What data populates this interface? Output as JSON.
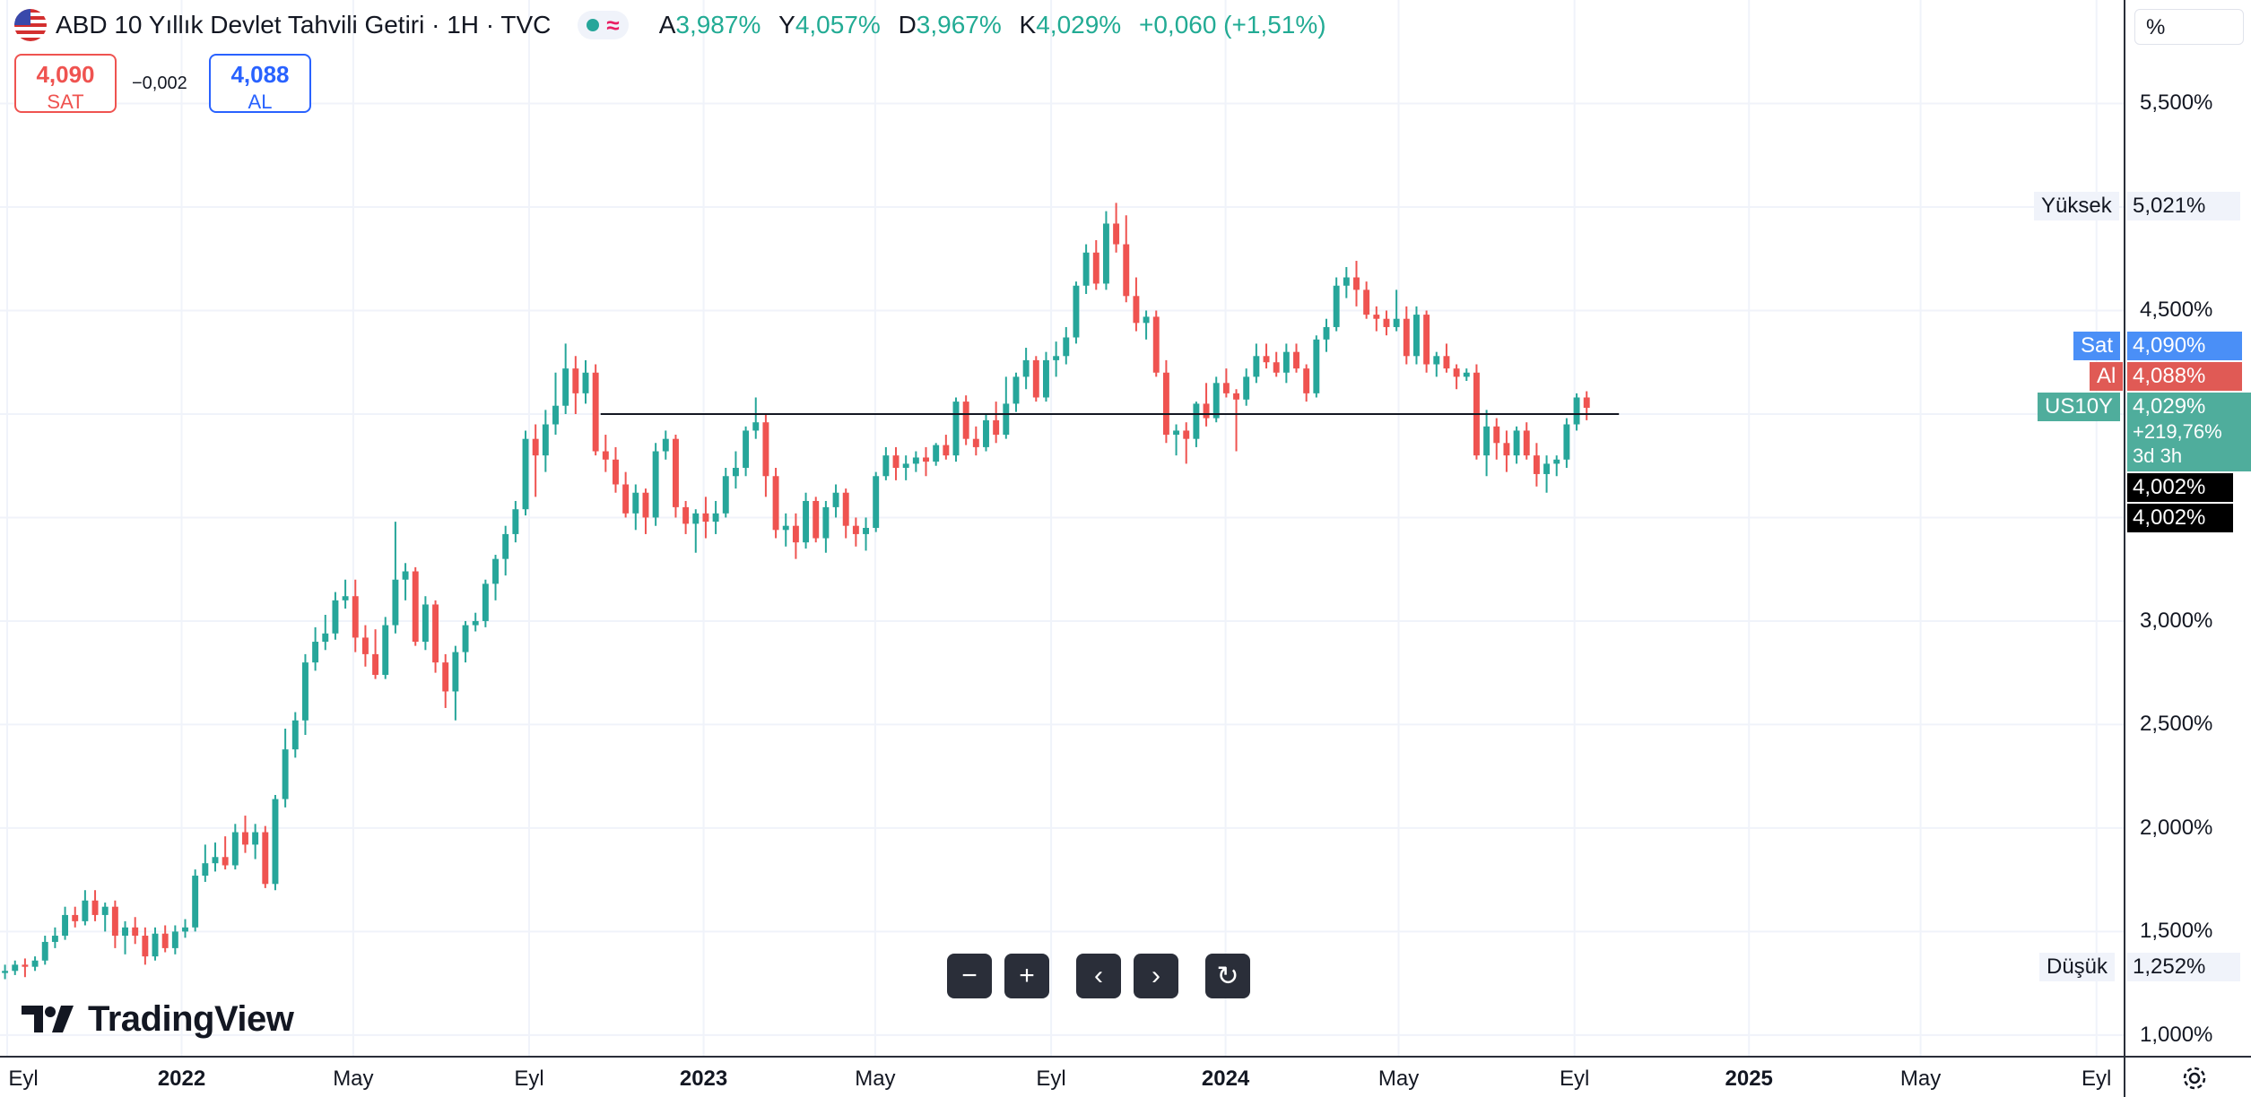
{
  "header": {
    "title": "ABD 10 Yıllık Devlet Tahvili Getiri · 1H · TVC",
    "ohlc": [
      {
        "key": "A",
        "value": "3,987%"
      },
      {
        "key": "Y",
        "value": "4,057%"
      },
      {
        "key": "D",
        "value": "3,967%"
      },
      {
        "key": "K",
        "value": "4,029%"
      }
    ],
    "change": "+0,060 (+1,51%)"
  },
  "trade": {
    "sell_price": "4,090",
    "sell_label": "SAT",
    "spread": "−0,002",
    "buy_price": "4,088",
    "buy_label": "AL"
  },
  "y_axis": {
    "unit": "%",
    "labels": {
      "high_label": "Yüksek",
      "high_value": "5,021%",
      "sat_label": "Sat",
      "sat_value": "4,090%",
      "al_label": "Al",
      "al_value": "4,088%",
      "symbol": "US10Y",
      "last_value": "4,029%",
      "last_change": "+219,76%",
      "countdown": "3d 3h",
      "cross_1": "4,002%",
      "cross_2": "4,002%",
      "low_label": "Düşük",
      "low_value": "1,252%"
    }
  },
  "toolbar": {
    "zoom_out": "−",
    "zoom_in": "+",
    "scroll_left": "‹",
    "scroll_right": "›",
    "reset": "↻"
  },
  "branding": {
    "logo_text": "TradingView"
  },
  "colors": {
    "up": "#26a69a",
    "down": "#ef5350",
    "grid": "#f0f3fa",
    "text": "#131722",
    "sell": "#ef5350",
    "buy": "#2962ff",
    "sat_tag": "#2962ff",
    "al_tag": "#ef5350",
    "last": "#26a69a"
  },
  "chart_data": {
    "type": "candlestick",
    "timeframe": "1W",
    "y_scale": "percent",
    "ylim": [
      0.9,
      6.0
    ],
    "reference_line": 4.0,
    "y_ticks": [
      1.0,
      1.5,
      2.0,
      2.5,
      3.0,
      3.5,
      4.0,
      4.5,
      5.0,
      5.5
    ],
    "y_tick_labels": [
      "1,000%",
      "1,500%",
      "2,000%",
      "2,500%",
      "3,000%",
      "",
      "",
      "4,500%",
      "",
      "5,500%"
    ],
    "x_ticks": [
      {
        "label": "Eyl",
        "date": "2021-09-01",
        "year": false
      },
      {
        "label": "2022",
        "date": "2022-01-01",
        "year": true
      },
      {
        "label": "May",
        "date": "2022-05-01",
        "year": false
      },
      {
        "label": "Eyl",
        "date": "2022-09-01",
        "year": false
      },
      {
        "label": "2023",
        "date": "2023-01-01",
        "year": true
      },
      {
        "label": "May",
        "date": "2023-05-01",
        "year": false
      },
      {
        "label": "Eyl",
        "date": "2023-09-01",
        "year": false
      },
      {
        "label": "2024",
        "date": "2024-01-01",
        "year": true
      },
      {
        "label": "May",
        "date": "2024-05-01",
        "year": false
      },
      {
        "label": "Eyl",
        "date": "2024-09-01",
        "year": false
      },
      {
        "label": "2025",
        "date": "2025-01-01",
        "year": true
      },
      {
        "label": "May",
        "date": "2025-05-01",
        "year": false
      },
      {
        "label": "Eyl",
        "date": "2025-09-01",
        "year": false
      }
    ],
    "xlim": [
      "2021-08-27",
      "2025-09-20"
    ],
    "series_start": "2021-08-27",
    "ohlc": [
      [
        1.3,
        1.34,
        1.27,
        1.31
      ],
      [
        1.31,
        1.36,
        1.29,
        1.34
      ],
      [
        1.34,
        1.37,
        1.28,
        1.33
      ],
      [
        1.33,
        1.38,
        1.31,
        1.36
      ],
      [
        1.36,
        1.48,
        1.34,
        1.45
      ],
      [
        1.45,
        1.52,
        1.42,
        1.48
      ],
      [
        1.48,
        1.62,
        1.46,
        1.58
      ],
      [
        1.58,
        1.62,
        1.52,
        1.55
      ],
      [
        1.55,
        1.7,
        1.53,
        1.65
      ],
      [
        1.65,
        1.7,
        1.55,
        1.58
      ],
      [
        1.58,
        1.64,
        1.5,
        1.62
      ],
      [
        1.62,
        1.65,
        1.42,
        1.48
      ],
      [
        1.48,
        1.55,
        1.39,
        1.52
      ],
      [
        1.52,
        1.57,
        1.44,
        1.48
      ],
      [
        1.48,
        1.52,
        1.34,
        1.38
      ],
      [
        1.38,
        1.52,
        1.36,
        1.49
      ],
      [
        1.49,
        1.53,
        1.4,
        1.42
      ],
      [
        1.42,
        1.53,
        1.39,
        1.5
      ],
      [
        1.5,
        1.56,
        1.47,
        1.52
      ],
      [
        1.52,
        1.8,
        1.5,
        1.77
      ],
      [
        1.77,
        1.92,
        1.74,
        1.83
      ],
      [
        1.83,
        1.93,
        1.79,
        1.86
      ],
      [
        1.86,
        1.96,
        1.8,
        1.82
      ],
      [
        1.82,
        2.02,
        1.8,
        1.98
      ],
      [
        1.98,
        2.06,
        1.88,
        1.92
      ],
      [
        1.92,
        2.02,
        1.85,
        1.98
      ],
      [
        1.98,
        2.01,
        1.71,
        1.73
      ],
      [
        1.73,
        2.16,
        1.7,
        2.14
      ],
      [
        2.14,
        2.48,
        2.1,
        2.38
      ],
      [
        2.38,
        2.56,
        2.34,
        2.52
      ],
      [
        2.52,
        2.84,
        2.45,
        2.8
      ],
      [
        2.8,
        2.97,
        2.76,
        2.9
      ],
      [
        2.9,
        3.03,
        2.86,
        2.94
      ],
      [
        2.94,
        3.14,
        2.91,
        3.1
      ],
      [
        3.1,
        3.2,
        3.06,
        3.12
      ],
      [
        3.12,
        3.2,
        2.85,
        2.92
      ],
      [
        2.92,
        2.98,
        2.78,
        2.84
      ],
      [
        2.84,
        2.96,
        2.72,
        2.74
      ],
      [
        2.74,
        3.02,
        2.72,
        2.98
      ],
      [
        2.98,
        3.48,
        2.94,
        3.2
      ],
      [
        3.2,
        3.28,
        3.1,
        3.24
      ],
      [
        3.24,
        3.26,
        2.88,
        2.9
      ],
      [
        2.9,
        3.12,
        2.86,
        3.08
      ],
      [
        3.08,
        3.1,
        2.75,
        2.8
      ],
      [
        2.8,
        2.84,
        2.58,
        2.66
      ],
      [
        2.66,
        2.88,
        2.52,
        2.85
      ],
      [
        2.85,
        3.0,
        2.8,
        2.98
      ],
      [
        2.98,
        3.04,
        2.95,
        3.0
      ],
      [
        3.0,
        3.2,
        2.97,
        3.18
      ],
      [
        3.18,
        3.32,
        3.1,
        3.3
      ],
      [
        3.3,
        3.46,
        3.22,
        3.42
      ],
      [
        3.42,
        3.58,
        3.38,
        3.54
      ],
      [
        3.54,
        3.92,
        3.51,
        3.88
      ],
      [
        3.88,
        3.95,
        3.6,
        3.8
      ],
      [
        3.8,
        4.02,
        3.72,
        3.95
      ],
      [
        3.95,
        4.2,
        3.9,
        4.04
      ],
      [
        4.04,
        4.34,
        4.0,
        4.22
      ],
      [
        4.22,
        4.28,
        4.0,
        4.1
      ],
      [
        4.1,
        4.26,
        4.05,
        4.2
      ],
      [
        4.2,
        4.24,
        3.8,
        3.82
      ],
      [
        3.82,
        3.9,
        3.72,
        3.78
      ],
      [
        3.78,
        3.84,
        3.62,
        3.66
      ],
      [
        3.66,
        3.72,
        3.5,
        3.52
      ],
      [
        3.52,
        3.66,
        3.44,
        3.62
      ],
      [
        3.62,
        3.64,
        3.42,
        3.5
      ],
      [
        3.5,
        3.86,
        3.46,
        3.82
      ],
      [
        3.82,
        3.92,
        3.78,
        3.88
      ],
      [
        3.88,
        3.9,
        3.5,
        3.55
      ],
      [
        3.55,
        3.58,
        3.42,
        3.47
      ],
      [
        3.47,
        3.54,
        3.33,
        3.52
      ],
      [
        3.52,
        3.6,
        3.4,
        3.48
      ],
      [
        3.48,
        3.58,
        3.42,
        3.52
      ],
      [
        3.52,
        3.74,
        3.5,
        3.7
      ],
      [
        3.7,
        3.82,
        3.64,
        3.74
      ],
      [
        3.74,
        3.94,
        3.7,
        3.92
      ],
      [
        3.92,
        4.08,
        3.88,
        3.96
      ],
      [
        3.96,
        4.0,
        3.6,
        3.7
      ],
      [
        3.7,
        3.74,
        3.4,
        3.44
      ],
      [
        3.44,
        3.52,
        3.36,
        3.46
      ],
      [
        3.46,
        3.52,
        3.3,
        3.38
      ],
      [
        3.38,
        3.62,
        3.35,
        3.58
      ],
      [
        3.58,
        3.6,
        3.38,
        3.4
      ],
      [
        3.4,
        3.58,
        3.33,
        3.55
      ],
      [
        3.55,
        3.66,
        3.5,
        3.62
      ],
      [
        3.62,
        3.64,
        3.4,
        3.46
      ],
      [
        3.46,
        3.5,
        3.36,
        3.42
      ],
      [
        3.42,
        3.5,
        3.34,
        3.45
      ],
      [
        3.45,
        3.72,
        3.43,
        3.7
      ],
      [
        3.7,
        3.84,
        3.68,
        3.8
      ],
      [
        3.8,
        3.84,
        3.68,
        3.74
      ],
      [
        3.74,
        3.8,
        3.68,
        3.76
      ],
      [
        3.76,
        3.82,
        3.72,
        3.79
      ],
      [
        3.79,
        3.84,
        3.7,
        3.77
      ],
      [
        3.77,
        3.86,
        3.75,
        3.85
      ],
      [
        3.85,
        3.9,
        3.78,
        3.8
      ],
      [
        3.8,
        4.08,
        3.77,
        4.06
      ],
      [
        4.06,
        4.09,
        3.85,
        3.88
      ],
      [
        3.88,
        3.94,
        3.8,
        3.84
      ],
      [
        3.84,
        4.0,
        3.82,
        3.97
      ],
      [
        3.97,
        4.06,
        3.86,
        3.9
      ],
      [
        3.9,
        4.18,
        3.88,
        4.05
      ],
      [
        4.05,
        4.2,
        4.01,
        4.18
      ],
      [
        4.18,
        4.32,
        4.12,
        4.26
      ],
      [
        4.26,
        4.28,
        4.06,
        4.08
      ],
      [
        4.08,
        4.3,
        4.06,
        4.26
      ],
      [
        4.26,
        4.35,
        4.18,
        4.28
      ],
      [
        4.28,
        4.42,
        4.24,
        4.37
      ],
      [
        4.37,
        4.64,
        4.34,
        4.62
      ],
      [
        4.62,
        4.82,
        4.58,
        4.78
      ],
      [
        4.78,
        4.84,
        4.6,
        4.63
      ],
      [
        4.63,
        4.98,
        4.6,
        4.92
      ],
      [
        4.92,
        5.02,
        4.78,
        4.82
      ],
      [
        4.82,
        4.96,
        4.54,
        4.57
      ],
      [
        4.57,
        4.66,
        4.4,
        4.44
      ],
      [
        4.44,
        4.5,
        4.36,
        4.47
      ],
      [
        4.47,
        4.5,
        4.18,
        4.2
      ],
      [
        4.2,
        4.26,
        3.86,
        3.9
      ],
      [
        3.9,
        3.95,
        3.8,
        3.92
      ],
      [
        3.92,
        3.96,
        3.76,
        3.88
      ],
      [
        3.88,
        4.06,
        3.84,
        4.05
      ],
      [
        4.05,
        4.15,
        3.94,
        3.98
      ],
      [
        3.98,
        4.18,
        3.96,
        4.15
      ],
      [
        4.15,
        4.22,
        4.08,
        4.1
      ],
      [
        4.1,
        4.12,
        3.82,
        4.07
      ],
      [
        4.07,
        4.22,
        4.04,
        4.18
      ],
      [
        4.18,
        4.34,
        4.15,
        4.28
      ],
      [
        4.28,
        4.34,
        4.22,
        4.25
      ],
      [
        4.25,
        4.3,
        4.18,
        4.2
      ],
      [
        4.2,
        4.34,
        4.15,
        4.3
      ],
      [
        4.3,
        4.34,
        4.2,
        4.22
      ],
      [
        4.22,
        4.24,
        4.06,
        4.1
      ],
      [
        4.1,
        4.38,
        4.08,
        4.36
      ],
      [
        4.36,
        4.46,
        4.3,
        4.42
      ],
      [
        4.42,
        4.66,
        4.4,
        4.62
      ],
      [
        4.62,
        4.71,
        4.56,
        4.66
      ],
      [
        4.66,
        4.74,
        4.52,
        4.6
      ],
      [
        4.6,
        4.64,
        4.46,
        4.48
      ],
      [
        4.48,
        4.52,
        4.4,
        4.46
      ],
      [
        4.46,
        4.5,
        4.38,
        4.42
      ],
      [
        4.42,
        4.6,
        4.4,
        4.46
      ],
      [
        4.46,
        4.52,
        4.24,
        4.28
      ],
      [
        4.28,
        4.52,
        4.24,
        4.48
      ],
      [
        4.48,
        4.5,
        4.2,
        4.24
      ],
      [
        4.24,
        4.3,
        4.18,
        4.28
      ],
      [
        4.28,
        4.34,
        4.2,
        4.22
      ],
      [
        4.22,
        4.24,
        4.12,
        4.18
      ],
      [
        4.18,
        4.22,
        4.16,
        4.2
      ],
      [
        4.2,
        4.24,
        3.78,
        3.8
      ],
      [
        3.8,
        4.02,
        3.7,
        3.94
      ],
      [
        3.94,
        3.98,
        3.78,
        3.86
      ],
      [
        3.86,
        3.92,
        3.72,
        3.8
      ],
      [
        3.8,
        3.94,
        3.76,
        3.92
      ],
      [
        3.92,
        3.96,
        3.78,
        3.8
      ],
      [
        3.8,
        3.86,
        3.65,
        3.71
      ],
      [
        3.71,
        3.8,
        3.62,
        3.76
      ],
      [
        3.76,
        3.8,
        3.7,
        3.78
      ],
      [
        3.78,
        3.98,
        3.74,
        3.95
      ],
      [
        3.95,
        4.1,
        3.92,
        4.08
      ],
      [
        4.08,
        4.11,
        3.97,
        4.03
      ]
    ]
  }
}
